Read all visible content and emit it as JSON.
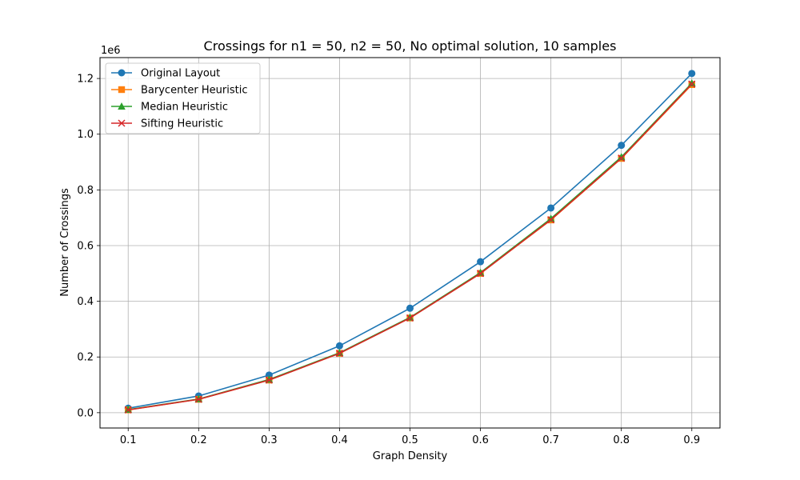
{
  "chart_data": {
    "type": "line",
    "title": "Crossings for n1 = 50, n2 = 50, No optimal solution, 10 samples",
    "xlabel": "Graph Density",
    "ylabel": "Number of Crossings",
    "y_offset_label": "1e6",
    "x": [
      0.1,
      0.2,
      0.3,
      0.4,
      0.5,
      0.6,
      0.7,
      0.8,
      0.9
    ],
    "x_ticks": [
      "0.1",
      "0.2",
      "0.3",
      "0.4",
      "0.5",
      "0.6",
      "0.7",
      "0.8",
      "0.9"
    ],
    "y_ticks": [
      {
        "value": 0.0,
        "label": "0.0"
      },
      {
        "value": 0.2,
        "label": "0.2"
      },
      {
        "value": 0.4,
        "label": "0.4"
      },
      {
        "value": 0.6,
        "label": "0.6"
      },
      {
        "value": 0.8,
        "label": "0.8"
      },
      {
        "value": 1.0,
        "label": "1.0"
      },
      {
        "value": 1.2,
        "label": "1.2"
      }
    ],
    "xlim": [
      0.06,
      0.94
    ],
    "ylim": [
      -0.055,
      1.275
    ],
    "grid": true,
    "legend_position": "top-left",
    "series": [
      {
        "name": "Original Layout",
        "color": "#1f77b4",
        "marker": "circle",
        "values": [
          0.016,
          0.06,
          0.135,
          0.24,
          0.375,
          0.542,
          0.735,
          0.96,
          1.218
        ]
      },
      {
        "name": "Barycenter Heuristic",
        "color": "#ff7f0e",
        "marker": "square",
        "values": [
          0.01,
          0.048,
          0.117,
          0.213,
          0.34,
          0.5,
          0.692,
          0.913,
          1.178
        ]
      },
      {
        "name": "Median Heuristic",
        "color": "#2ca02c",
        "marker": "triangle",
        "values": [
          0.011,
          0.049,
          0.119,
          0.215,
          0.342,
          0.503,
          0.697,
          0.918,
          1.183
        ]
      },
      {
        "name": "Sifting Heuristic",
        "color": "#d62728",
        "marker": "x",
        "values": [
          0.01,
          0.048,
          0.117,
          0.213,
          0.34,
          0.5,
          0.693,
          0.914,
          1.18
        ]
      }
    ]
  }
}
